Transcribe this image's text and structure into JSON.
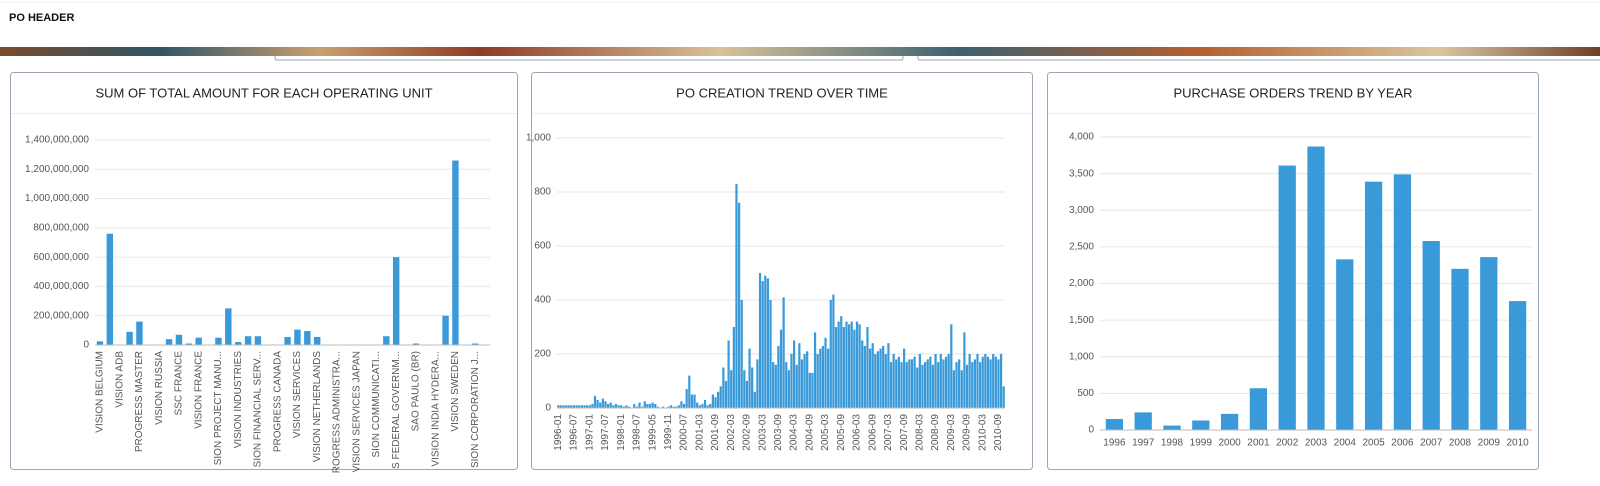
{
  "header": {
    "title": "PO HEADER"
  },
  "chart_data": [
    {
      "type": "bar",
      "title": "SUM OF TOTAL AMOUNT FOR EACH OPERATING UNIT",
      "color": "#3a9ad9",
      "grid": true,
      "categories": [
        "VISION BELGIUM",
        null,
        "VISION ADB",
        null,
        "PROGRESS MASTER",
        null,
        "VISION RUSSIA",
        null,
        "SSC FRANCE",
        null,
        "VISION FRANCE",
        null,
        "SION PROJECT MANU...",
        null,
        "VISION INDUSTRIES",
        null,
        "SION FINANCIAL SERV...",
        null,
        "PROGRESS CANADA",
        null,
        "VISION SERVICES",
        null,
        "VISION NETHERLANDS",
        null,
        "ROGRESS ADMINISTRA...",
        null,
        "VISION SERVICES JAPAN",
        null,
        "SION COMMUNICATI...",
        null,
        "S FEDERAL GOVERNM...",
        null,
        "SAO PAULO (BR)",
        null,
        "VISION INDIA HYDERA...",
        null,
        "VISION SWEDEN",
        null,
        "SION CORPORATION J...",
        null
      ],
      "values": [
        25000000,
        760000000,
        0,
        90000000,
        160000000,
        0,
        0,
        40000000,
        70000000,
        10000000,
        50000000,
        0,
        50000000,
        250000000,
        20000000,
        60000000,
        60000000,
        0,
        0,
        55000000,
        105000000,
        95000000,
        55000000,
        0,
        0,
        0,
        0,
        0,
        0,
        60000000,
        600000000,
        0,
        10000000,
        0,
        0,
        200000000,
        1260000000,
        0,
        10000000,
        0
      ],
      "ylim": [
        0,
        1400000000
      ],
      "yticks": [
        0,
        {
          "value": 200000000,
          "label": "200,000,000"
        },
        {
          "value": 400000000,
          "label": "400,000,000"
        },
        {
          "value": 600000000,
          "label": "600,000,000"
        },
        {
          "value": 800000000,
          "label": "800,000,000"
        },
        {
          "value": 1000000000,
          "label": "1,000,000,000"
        },
        {
          "value": 1200000000,
          "label": "1,200,000,000"
        },
        {
          "value": 1400000000,
          "label": "1,400,000,000"
        }
      ]
    },
    {
      "type": "bar",
      "title": "PO CREATION TREND OVER TIME",
      "color": "#3a9ad9",
      "grid": true,
      "categories": [
        "1996-01",
        null,
        null,
        null,
        null,
        null,
        "1996-07",
        null,
        null,
        null,
        null,
        null,
        "1997-01",
        null,
        null,
        null,
        null,
        null,
        "1997-07",
        null,
        null,
        null,
        null,
        null,
        "1998-01",
        null,
        null,
        null,
        null,
        null,
        "1998-07",
        null,
        null,
        null,
        null,
        null,
        "1999-05",
        null,
        null,
        null,
        null,
        null,
        "1999-11",
        null,
        null,
        null,
        null,
        null,
        "2000-07",
        null,
        null,
        null,
        null,
        null,
        "2001-03",
        null,
        null,
        null,
        null,
        null,
        "2001-09",
        null,
        null,
        null,
        null,
        null,
        "2002-03",
        null,
        null,
        null,
        null,
        null,
        "2002-09",
        null,
        null,
        null,
        null,
        null,
        "2003-03",
        null,
        null,
        null,
        null,
        null,
        "2003-09",
        null,
        null,
        null,
        null,
        null,
        "2004-03",
        null,
        null,
        null,
        null,
        null,
        "2004-09",
        null,
        null,
        null,
        null,
        null,
        "2005-03",
        null,
        null,
        null,
        null,
        null,
        "2005-09",
        null,
        null,
        null,
        null,
        null,
        "2006-03",
        null,
        null,
        null,
        null,
        null,
        "2006-09",
        null,
        null,
        null,
        null,
        null,
        "2007-03",
        null,
        null,
        null,
        null,
        null,
        "2007-09",
        null,
        null,
        null,
        null,
        null,
        "2008-03",
        null,
        null,
        null,
        null,
        null,
        "2008-09",
        null,
        null,
        null,
        null,
        null,
        "2009-03",
        null,
        null,
        null,
        null,
        null,
        "2009-09",
        null,
        null,
        null,
        null,
        null,
        "2010-03",
        null,
        null,
        null,
        null,
        null,
        "2010-09",
        null,
        null
      ],
      "values": [
        10,
        10,
        10,
        10,
        10,
        10,
        10,
        10,
        10,
        10,
        10,
        10,
        10,
        15,
        45,
        30,
        20,
        35,
        25,
        15,
        20,
        10,
        15,
        10,
        10,
        5,
        10,
        5,
        0,
        15,
        5,
        20,
        5,
        25,
        15,
        15,
        20,
        15,
        5,
        0,
        5,
        0,
        5,
        10,
        5,
        5,
        10,
        25,
        15,
        70,
        120,
        50,
        50,
        20,
        10,
        15,
        30,
        10,
        15,
        50,
        40,
        60,
        80,
        150,
        100,
        250,
        140,
        300,
        830,
        760,
        400,
        140,
        100,
        220,
        150,
        60,
        180,
        500,
        470,
        490,
        480,
        400,
        170,
        160,
        230,
        290,
        410,
        170,
        140,
        200,
        250,
        160,
        240,
        180,
        200,
        210,
        130,
        130,
        280,
        200,
        220,
        230,
        260,
        220,
        400,
        420,
        300,
        320,
        340,
        300,
        320,
        310,
        320,
        290,
        320,
        310,
        250,
        230,
        300,
        220,
        240,
        200,
        210,
        220,
        230,
        200,
        240,
        170,
        200,
        180,
        190,
        170,
        220,
        170,
        180,
        180,
        190,
        150,
        200,
        160,
        170,
        180,
        190,
        160,
        200,
        170,
        200,
        180,
        190,
        200,
        310,
        140,
        170,
        180,
        140,
        280,
        160,
        200,
        170,
        180,
        200,
        170,
        190,
        200,
        190,
        180,
        200,
        190,
        180,
        200,
        80
      ],
      "ylim": [
        0,
        1000
      ],
      "yticks": [
        0,
        200,
        400,
        600,
        800,
        {
          "value": 1000,
          "label": "1,000"
        }
      ]
    },
    {
      "type": "bar",
      "title": "PURCHASE ORDERS TREND BY YEAR",
      "color": "#3a9ad9",
      "grid": true,
      "categories": [
        "1996",
        "1997",
        "1998",
        "1999",
        "2000",
        "2001",
        "2002",
        "2003",
        "2004",
        "2005",
        "2006",
        "2007",
        "2008",
        "2009",
        "2010"
      ],
      "values": [
        150,
        240,
        60,
        130,
        220,
        570,
        3610,
        3870,
        2330,
        3390,
        3490,
        2580,
        2200,
        2360,
        1760
      ],
      "ylim": [
        0,
        4000
      ],
      "yticks": [
        0,
        500,
        {
          "value": 1000,
          "label": "1,000"
        },
        {
          "value": 1500,
          "label": "1,500"
        },
        {
          "value": 2000,
          "label": "2,000"
        },
        {
          "value": 2500,
          "label": "2,500"
        },
        {
          "value": 3000,
          "label": "3,000"
        },
        {
          "value": 3500,
          "label": "3,500"
        },
        {
          "value": 4000,
          "label": "4,000"
        }
      ]
    }
  ]
}
